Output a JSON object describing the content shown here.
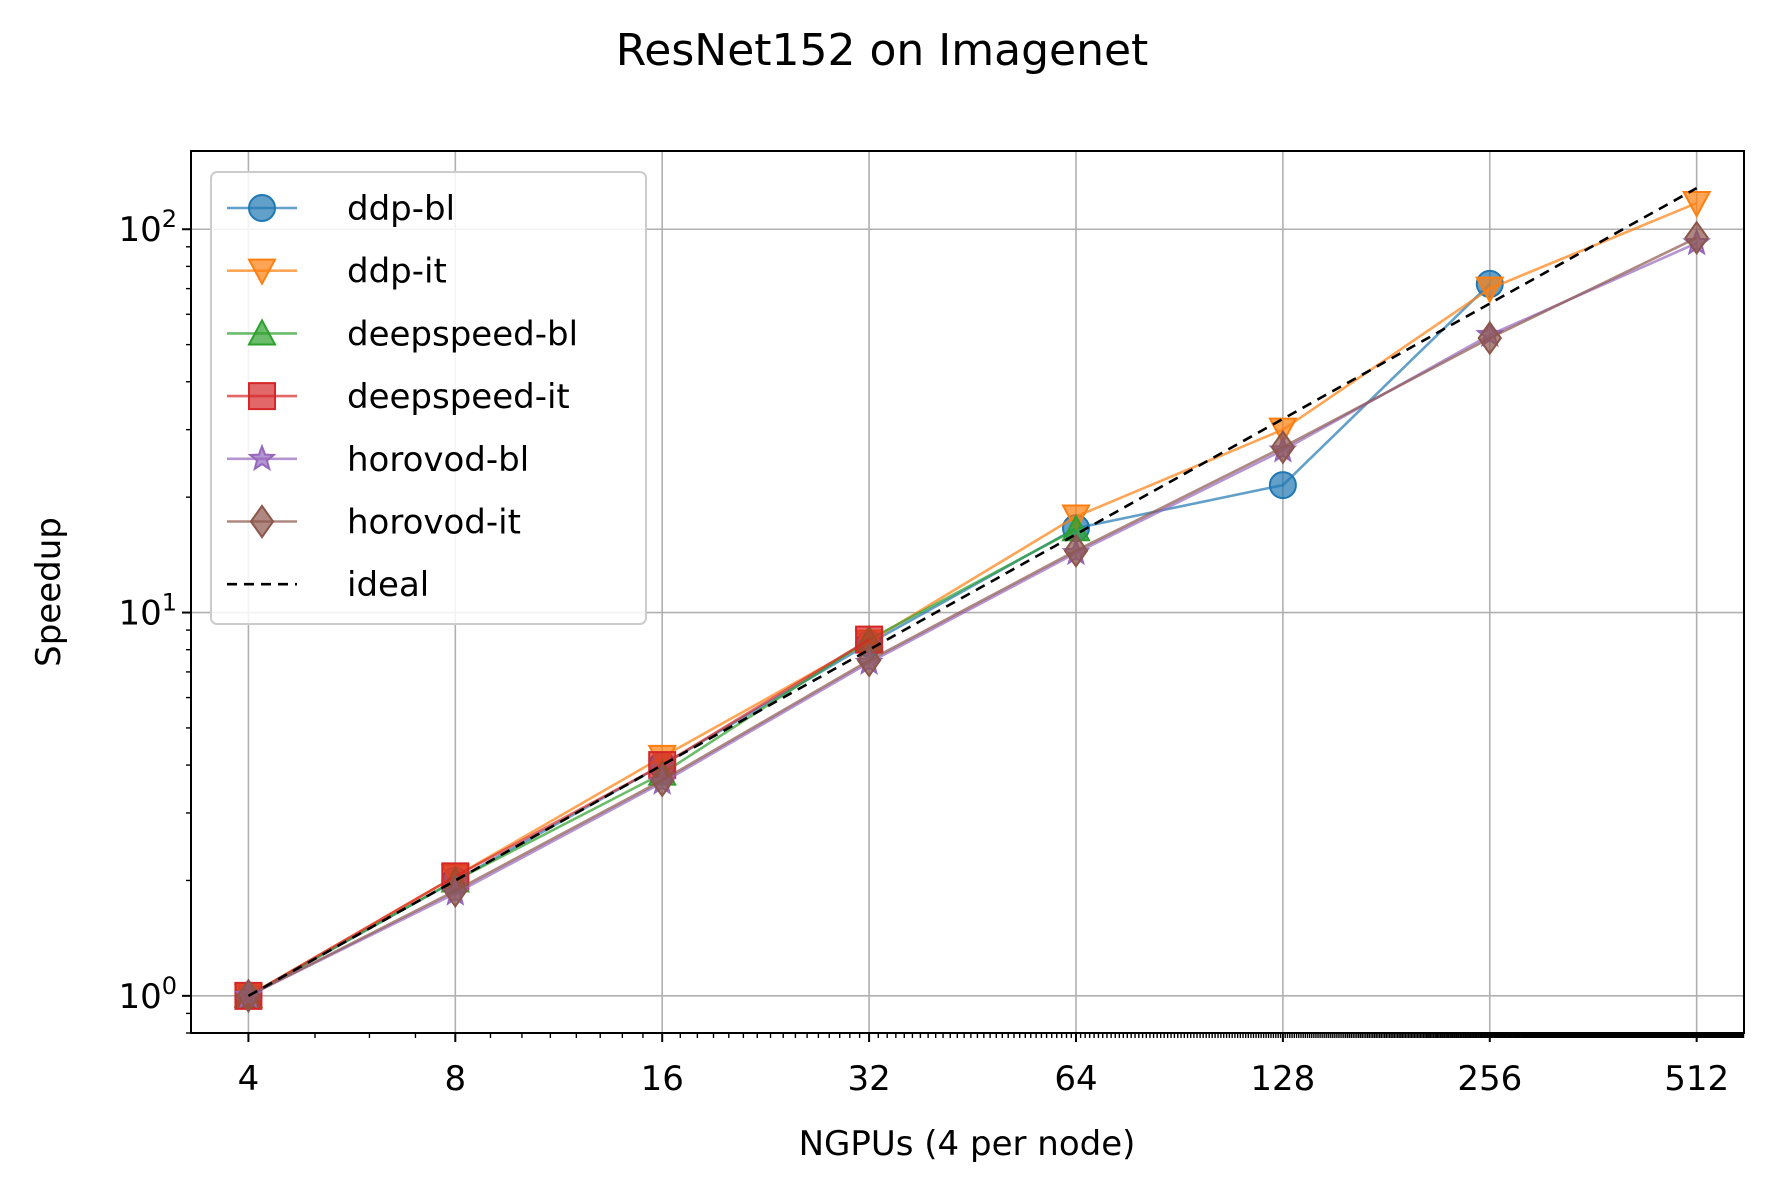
{
  "chart_data": {
    "type": "line",
    "title": "ResNet152 on Imagenet",
    "xlabel": "NGPUs (4 per node)",
    "ylabel": "Speedup",
    "x_scale": "log2",
    "y_scale": "log10",
    "x": [
      4,
      8,
      16,
      32,
      64,
      128,
      256,
      512
    ],
    "x_tick_labels": [
      "4",
      "8",
      "16",
      "32",
      "64",
      "128",
      "256",
      "512"
    ],
    "y_ticks": [
      1,
      10,
      100
    ],
    "y_tick_labels": [
      {
        "base": "10",
        "exp": "0"
      },
      {
        "base": "10",
        "exp": "1"
      },
      {
        "base": "10",
        "exp": "2"
      }
    ],
    "xlim": [
      3.3,
      600
    ],
    "ylim": [
      0.8,
      160
    ],
    "grid": true,
    "legend_position": "upper-left",
    "series": [
      {
        "name": "ddp-bl",
        "color": "#1f77b4",
        "marker": "circle",
        "dashed": false,
        "x": [
          4,
          8,
          16,
          32,
          64,
          128,
          256
        ],
        "values": [
          1.0,
          2.0,
          4.0,
          8.3,
          16.6,
          21.5,
          72
        ]
      },
      {
        "name": "ddp-it",
        "color": "#ff7f0e",
        "marker": "triangle-down",
        "dashed": false,
        "x": [
          4,
          8,
          16,
          32,
          64,
          128,
          256,
          512
        ],
        "values": [
          1.0,
          2.05,
          4.2,
          8.4,
          17.8,
          30,
          70,
          117
        ]
      },
      {
        "name": "deepspeed-bl",
        "color": "#2ca02c",
        "marker": "triangle-up",
        "dashed": false,
        "x": [
          4,
          8,
          16,
          32,
          64
        ],
        "values": [
          1.0,
          2.0,
          3.8,
          8.5,
          16.5
        ]
      },
      {
        "name": "deepspeed-it",
        "color": "#d62728",
        "marker": "square",
        "dashed": false,
        "x": [
          4,
          8,
          16,
          32
        ],
        "values": [
          1.0,
          2.05,
          4.0,
          8.5
        ]
      },
      {
        "name": "horovod-bl",
        "color": "#9467bd",
        "marker": "star",
        "dashed": false,
        "x": [
          4,
          8,
          16,
          32,
          64,
          128,
          256,
          512
        ],
        "values": [
          1.0,
          1.85,
          3.6,
          7.4,
          14.3,
          26.5,
          53,
          92
        ]
      },
      {
        "name": "horovod-it",
        "color": "#8c564b",
        "marker": "diamond",
        "dashed": false,
        "x": [
          4,
          8,
          16,
          32,
          64,
          128,
          256,
          512
        ],
        "values": [
          1.0,
          1.88,
          3.65,
          7.5,
          14.5,
          27,
          52,
          95
        ]
      },
      {
        "name": "ideal",
        "color": "#000000",
        "marker": "none",
        "dashed": true,
        "x": [
          4,
          8,
          16,
          32,
          64,
          128,
          256,
          512
        ],
        "values": [
          1,
          2,
          4,
          8,
          16,
          32,
          64,
          128
        ]
      }
    ]
  }
}
